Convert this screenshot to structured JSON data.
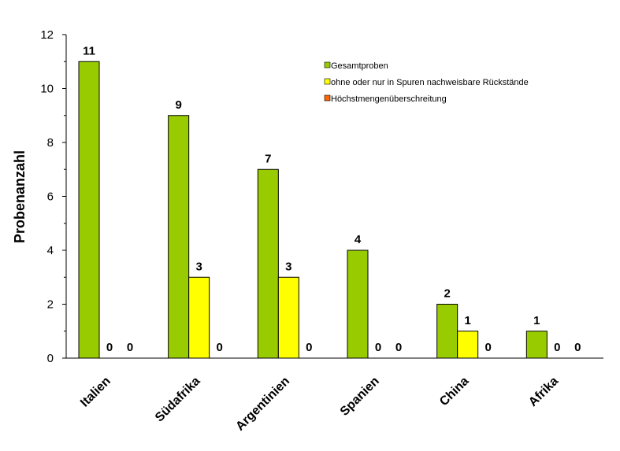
{
  "chart_data": {
    "type": "bar",
    "ylabel": "Probenanzahl",
    "xlabel": "",
    "ylim": [
      0,
      12
    ],
    "yticks": [
      0,
      2,
      4,
      6,
      8,
      10,
      12
    ],
    "categories": [
      "Italien",
      "Südafrika",
      "Argentinien",
      "Spanien",
      "China",
      "Afrika"
    ],
    "series": [
      {
        "name": "Gesamtproben",
        "color": "#99cc00",
        "values": [
          11,
          9,
          7,
          4,
          2,
          1
        ]
      },
      {
        "name": "ohne oder nur in Spuren nachweisbare Rückstände",
        "color": "#ffff00",
        "values": [
          0,
          3,
          3,
          0,
          1,
          0
        ]
      },
      {
        "name": "Höchstmengenüberschreitung",
        "color": "#ff6600",
        "values": [
          0,
          0,
          0,
          0,
          0,
          0
        ]
      }
    ],
    "legend_position": "top-right",
    "grid": false
  }
}
